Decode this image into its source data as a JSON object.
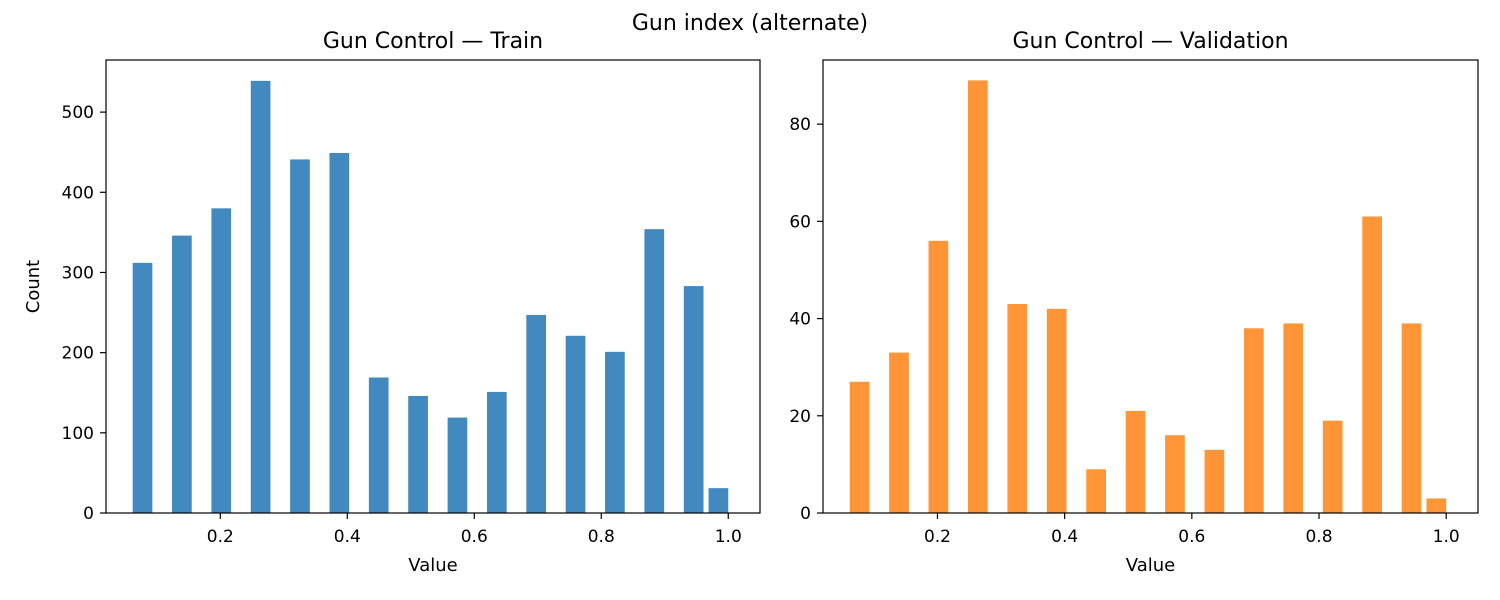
{
  "suptitle": "Gun index (alternate)",
  "chart_data": [
    {
      "type": "bar",
      "title": "Gun Control — Train",
      "xlabel": "Value",
      "ylabel": "Count",
      "xlim": [
        0.02,
        1.05
      ],
      "ylim": [
        0,
        565
      ],
      "xticks": [
        "0.2",
        "0.4",
        "0.6",
        "0.8",
        "1.0"
      ],
      "yticks": [
        "0",
        "100",
        "200",
        "300",
        "400",
        "500"
      ],
      "bar_width": 0.031,
      "x": [
        0.0775,
        0.1395,
        0.2015,
        0.2635,
        0.3255,
        0.3875,
        0.4495,
        0.5115,
        0.5735,
        0.6355,
        0.6975,
        0.7595,
        0.8215,
        0.8835,
        0.9455,
        0.9845
      ],
      "values": [
        312,
        346,
        380,
        539,
        441,
        449,
        169,
        146,
        119,
        151,
        247,
        221,
        201,
        354,
        283,
        31
      ],
      "color": "#4189bf",
      "grid": false
    },
    {
      "type": "bar",
      "title": "Gun Control — Validation",
      "xlabel": "Value",
      "ylabel": "",
      "xlim": [
        0.02,
        1.05
      ],
      "ylim": [
        0,
        93.2
      ],
      "xticks": [
        "0.2",
        "0.4",
        "0.6",
        "0.8",
        "1.0"
      ],
      "yticks": [
        "0",
        "20",
        "40",
        "60",
        "80"
      ],
      "bar_width": 0.031,
      "x": [
        0.0775,
        0.1395,
        0.2015,
        0.2635,
        0.3255,
        0.3875,
        0.4495,
        0.5115,
        0.5735,
        0.6355,
        0.6975,
        0.7595,
        0.8215,
        0.8835,
        0.9455,
        0.9845
      ],
      "values": [
        27,
        33,
        56,
        89,
        43,
        42,
        9,
        21,
        16,
        13,
        38,
        39,
        19,
        61,
        39,
        3
      ],
      "color": "#ff9537",
      "grid": false
    }
  ]
}
